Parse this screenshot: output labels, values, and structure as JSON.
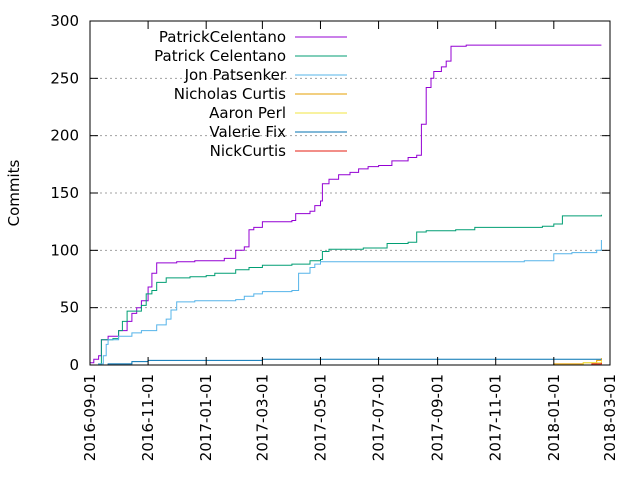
{
  "chart_data": {
    "type": "line",
    "title": "",
    "xlabel": "",
    "ylabel": "Commits",
    "ylim": [
      0,
      300
    ],
    "yticks": [
      0,
      50,
      100,
      150,
      200,
      250,
      300
    ],
    "xlim": [
      "2016-09-01",
      "2018-03-01"
    ],
    "xticks": [
      "2016-09-01",
      "2016-11-01",
      "2017-01-01",
      "2017-03-01",
      "2017-05-01",
      "2017-07-01",
      "2017-09-01",
      "2017-11-01",
      "2018-01-01",
      "2018-03-01"
    ],
    "grid": "horizontal-dotted",
    "legend": "top-left",
    "series": [
      {
        "name": "PatrickCelentano",
        "color": "#9400d3",
        "points": [
          [
            "2016-09-01",
            2
          ],
          [
            "2016-09-05",
            5
          ],
          [
            "2016-09-10",
            8
          ],
          [
            "2016-09-13",
            22
          ],
          [
            "2016-09-20",
            25
          ],
          [
            "2016-10-01",
            30
          ],
          [
            "2016-10-10",
            38
          ],
          [
            "2016-10-15",
            45
          ],
          [
            "2016-10-20",
            50
          ],
          [
            "2016-10-25",
            56
          ],
          [
            "2016-11-01",
            68
          ],
          [
            "2016-11-05",
            80
          ],
          [
            "2016-11-10",
            89
          ],
          [
            "2016-12-01",
            90
          ],
          [
            "2016-12-20",
            91
          ],
          [
            "2017-01-01",
            91
          ],
          [
            "2017-01-20",
            93
          ],
          [
            "2017-02-01",
            100
          ],
          [
            "2017-02-10",
            103
          ],
          [
            "2017-02-15",
            118
          ],
          [
            "2017-02-20",
            120
          ],
          [
            "2017-03-01",
            125
          ],
          [
            "2017-04-01",
            126
          ],
          [
            "2017-04-05",
            132
          ],
          [
            "2017-04-20",
            134
          ],
          [
            "2017-04-25",
            139
          ],
          [
            "2017-05-01",
            143
          ],
          [
            "2017-05-03",
            158
          ],
          [
            "2017-05-10",
            162
          ],
          [
            "2017-05-20",
            166
          ],
          [
            "2017-06-01",
            168
          ],
          [
            "2017-06-10",
            171
          ],
          [
            "2017-06-20",
            173
          ],
          [
            "2017-07-01",
            174
          ],
          [
            "2017-07-15",
            178
          ],
          [
            "2017-08-01",
            181
          ],
          [
            "2017-08-10",
            183
          ],
          [
            "2017-08-15",
            210
          ],
          [
            "2017-08-20",
            242
          ],
          [
            "2017-08-25",
            250
          ],
          [
            "2017-08-28",
            256
          ],
          [
            "2017-09-05",
            260
          ],
          [
            "2017-09-10",
            265
          ],
          [
            "2017-09-15",
            278
          ],
          [
            "2017-10-01",
            279
          ],
          [
            "2018-02-20",
            279
          ]
        ]
      },
      {
        "name": "Patrick Celentano",
        "color": "#009e73",
        "points": [
          [
            "2016-09-01",
            0
          ],
          [
            "2016-09-10",
            1
          ],
          [
            "2016-09-13",
            22
          ],
          [
            "2016-09-25",
            23
          ],
          [
            "2016-10-01",
            30
          ],
          [
            "2016-10-05",
            38
          ],
          [
            "2016-10-10",
            47
          ],
          [
            "2016-10-25",
            52
          ],
          [
            "2016-10-30",
            62
          ],
          [
            "2016-11-05",
            65
          ],
          [
            "2016-11-10",
            72
          ],
          [
            "2016-11-20",
            76
          ],
          [
            "2016-12-15",
            77
          ],
          [
            "2017-01-01",
            78
          ],
          [
            "2017-01-10",
            80
          ],
          [
            "2017-02-01",
            83
          ],
          [
            "2017-02-15",
            85
          ],
          [
            "2017-03-01",
            87
          ],
          [
            "2017-04-01",
            88
          ],
          [
            "2017-04-20",
            91
          ],
          [
            "2017-05-01",
            92
          ],
          [
            "2017-05-03",
            99
          ],
          [
            "2017-05-10",
            101
          ],
          [
            "2017-06-15",
            102
          ],
          [
            "2017-07-10",
            106
          ],
          [
            "2017-08-01",
            107
          ],
          [
            "2017-08-10",
            116
          ],
          [
            "2017-08-20",
            117
          ],
          [
            "2017-09-20",
            118
          ],
          [
            "2017-10-10",
            120
          ],
          [
            "2017-12-20",
            121
          ],
          [
            "2018-01-01",
            123
          ],
          [
            "2018-01-10",
            130
          ],
          [
            "2018-02-20",
            131
          ]
        ]
      },
      {
        "name": "Jon Patsenker",
        "color": "#56b4e9",
        "points": [
          [
            "2016-09-01",
            0
          ],
          [
            "2016-09-10",
            1
          ],
          [
            "2016-09-15",
            8
          ],
          [
            "2016-09-18",
            18
          ],
          [
            "2016-09-20",
            22
          ],
          [
            "2016-10-01",
            25
          ],
          [
            "2016-10-15",
            28
          ],
          [
            "2016-10-25",
            30
          ],
          [
            "2016-11-10",
            35
          ],
          [
            "2016-11-20",
            40
          ],
          [
            "2016-11-25",
            48
          ],
          [
            "2016-12-01",
            55
          ],
          [
            "2016-12-20",
            56
          ],
          [
            "2017-01-15",
            56
          ],
          [
            "2017-02-01",
            57
          ],
          [
            "2017-02-10",
            60
          ],
          [
            "2017-02-20",
            62
          ],
          [
            "2017-03-01",
            64
          ],
          [
            "2017-04-01",
            65
          ],
          [
            "2017-04-08",
            80
          ],
          [
            "2017-04-20",
            85
          ],
          [
            "2017-04-25",
            88
          ],
          [
            "2017-05-01",
            90
          ],
          [
            "2017-05-10",
            90
          ],
          [
            "2017-12-01",
            91
          ],
          [
            "2017-12-20",
            91
          ],
          [
            "2018-01-01",
            97
          ],
          [
            "2018-01-20",
            98
          ],
          [
            "2018-02-15",
            100
          ],
          [
            "2018-02-20",
            109
          ]
        ]
      },
      {
        "name": "Nicholas Curtis",
        "color": "#e69f00",
        "points": [
          [
            "2017-12-15",
            0
          ],
          [
            "2018-01-01",
            1
          ],
          [
            "2018-02-01",
            2
          ],
          [
            "2018-02-15",
            4
          ],
          [
            "2018-02-20",
            6
          ]
        ]
      },
      {
        "name": "Aaron Perl",
        "color": "#f0e442",
        "points": [
          [
            "2018-01-15",
            0
          ],
          [
            "2018-02-01",
            2
          ],
          [
            "2018-02-20",
            4
          ]
        ]
      },
      {
        "name": "Valerie Fix",
        "color": "#0072b2",
        "points": [
          [
            "2016-09-01",
            0
          ],
          [
            "2016-09-20",
            1
          ],
          [
            "2016-10-15",
            3
          ],
          [
            "2016-11-01",
            4
          ],
          [
            "2016-12-01",
            4
          ],
          [
            "2017-03-01",
            5
          ],
          [
            "2018-02-20",
            5
          ]
        ]
      },
      {
        "name": "NickCurtis",
        "color": "#e51e10",
        "points": [
          [
            "2018-01-20",
            0
          ],
          [
            "2018-02-10",
            1
          ],
          [
            "2018-02-20",
            2
          ]
        ]
      }
    ]
  }
}
